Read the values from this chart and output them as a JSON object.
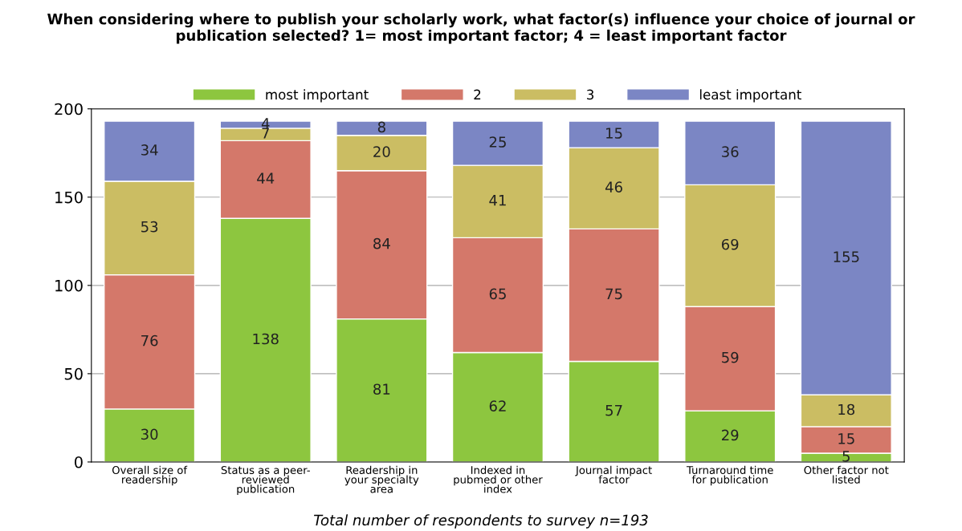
{
  "chart_data": {
    "type": "bar",
    "stacked": true,
    "title": "When considering where to publish your scholarly work, what factor(s) influence your choice of journal or publication selected? 1= most important factor; 4 = least important factor",
    "categories": [
      "Overall size of\nreadership",
      "Status as a peer-\nreviewed\npublication",
      "Readership in\nyour specialty\narea",
      "Indexed in\npubmed or other\nindex",
      "Journal impact\nfactor",
      "Turnaround time\nfor publication",
      "Other factor not\nlisted"
    ],
    "series": [
      {
        "name": "most important",
        "color": "#8dc63f",
        "values": [
          30,
          138,
          81,
          62,
          57,
          29,
          5
        ]
      },
      {
        "name": "2",
        "color": "#d4786a",
        "values": [
          76,
          44,
          84,
          65,
          75,
          59,
          15
        ]
      },
      {
        "name": "3",
        "color": "#cbbd63",
        "values": [
          53,
          7,
          20,
          41,
          46,
          69,
          18
        ]
      },
      {
        "name": "least important",
        "color": "#7b86c4",
        "values": [
          34,
          4,
          8,
          25,
          15,
          36,
          155
        ]
      }
    ],
    "ylim": [
      0,
      200
    ],
    "yticks": [
      0,
      50,
      100,
      150,
      200
    ],
    "grid": "y",
    "legend": "top",
    "data_labels": true,
    "annotations": [
      "Total number of respondents to survey n=193"
    ]
  }
}
